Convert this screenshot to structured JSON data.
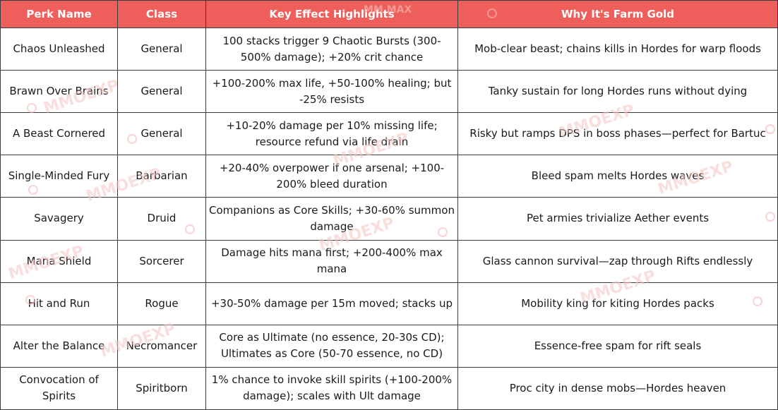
{
  "table": {
    "headers": [
      "Perk Name",
      "Class",
      "Key Effect Highlights",
      "Why It's Farm Gold"
    ],
    "rows": [
      {
        "perk": "Chaos Unleashed",
        "class": "General",
        "effect": "100 stacks trigger 9 Chaotic Bursts (300-500% damage); +20% crit chance",
        "why": "Mob-clear beast; chains kills in Hordes for warp floods"
      },
      {
        "perk": "Brawn Over Brains",
        "class": "General",
        "effect": "+100-200% max life, +50-100% healing; but -25% resists",
        "why": "Tanky sustain for long Hordes runs without dying"
      },
      {
        "perk": "A Beast Cornered",
        "class": "General",
        "effect": "+10-20% damage per 10% missing life; resource refund via life drain",
        "why": "Risky but ramps DPS in boss phases—perfect for Bartuc"
      },
      {
        "perk": "Single-Minded Fury",
        "class": "Barbarian",
        "effect": "+20-40% overpower if one arsenal; +100-200% bleed duration",
        "why": "Bleed spam melts Hordes waves"
      },
      {
        "perk": "Savagery",
        "class": "Druid",
        "effect": "Companions as Core Skills; +30-60% summon damage",
        "why": "Pet armies trivialize Aether events"
      },
      {
        "perk": "Mana Shield",
        "class": "Sorcerer",
        "effect": "Damage hits mana first; +200-400% max mana",
        "why": "Glass cannon survival—zap through Rifts endlessly"
      },
      {
        "perk": "Hit and Run",
        "class": "Rogue",
        "effect": "+30-50% damage per 15m moved; stacks up",
        "why": "Mobility king for kiting Hordes packs"
      },
      {
        "perk": "Alter the Balance",
        "class": "Necromancer",
        "effect": "Core as Ultimate (no essence, 20-30s CD); Ultimates as Core (50-70 essence, no CD)",
        "why": "Essence-free spam for rift seals"
      },
      {
        "perk": "Convocation of Spirits",
        "class": "Spiritborn",
        "effect": "1% chance to invoke skill spirits (+100-200% damage); scales with Ult damage",
        "why": "Proc city in dense mobs—Hordes heaven"
      }
    ]
  },
  "watermark": {
    "text": "MMOEXP",
    "header_text": "MM   MAX"
  },
  "colors": {
    "header_bg": "#ee5e5a",
    "header_text": "#ffffff",
    "border": "#3a3a3a",
    "watermark": "#f3c6c2"
  }
}
